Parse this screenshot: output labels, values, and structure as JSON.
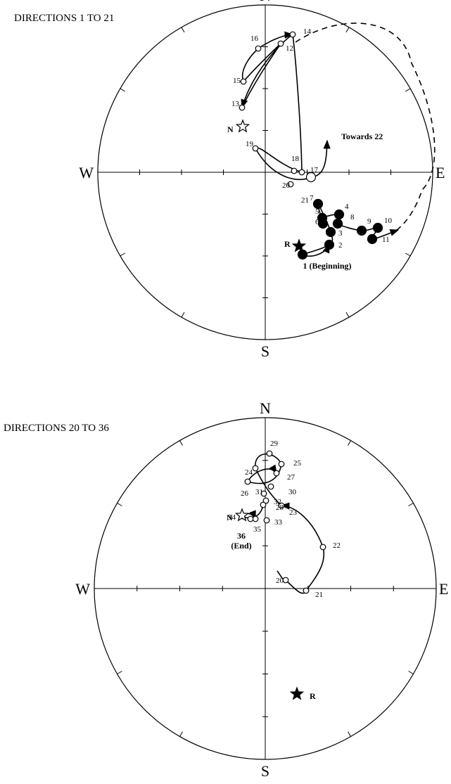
{
  "panels": [
    {
      "title": "DIRECTIONS 1 TO 21",
      "compass": {
        "n": "N",
        "s": "S",
        "w": "W",
        "e": "E"
      },
      "points": [
        {
          "label": "1 (Beginning)"
        },
        {
          "label": "2"
        },
        {
          "label": "3"
        },
        {
          "label": "4"
        },
        {
          "label": "5"
        },
        {
          "label": "6"
        },
        {
          "label": "7"
        },
        {
          "label": "8"
        },
        {
          "label": "9"
        },
        {
          "label": "10"
        },
        {
          "label": "11"
        },
        {
          "label": "12"
        },
        {
          "label": "13"
        },
        {
          "label": "14"
        },
        {
          "label": "15"
        },
        {
          "label": "16"
        },
        {
          "label": "17"
        },
        {
          "label": "18"
        },
        {
          "label": "19"
        },
        {
          "label": "20"
        },
        {
          "label": "21"
        }
      ],
      "stars": [
        {
          "label": "N"
        },
        {
          "label": "R"
        }
      ],
      "note": "Towards 22"
    },
    {
      "title": "DIRECTIONS 20 TO 36",
      "compass": {
        "n": "N",
        "s": "S",
        "w": "W",
        "e": "E"
      },
      "points": [
        {
          "label": "20"
        },
        {
          "label": "21"
        },
        {
          "label": "22"
        },
        {
          "label": "23"
        },
        {
          "label": "24"
        },
        {
          "label": "25"
        },
        {
          "label": "26"
        },
        {
          "label": "27"
        },
        {
          "label": "28"
        },
        {
          "label": "29"
        },
        {
          "label": "30"
        },
        {
          "label": "31"
        },
        {
          "label": "32"
        },
        {
          "label": "33"
        },
        {
          "label": "34"
        },
        {
          "label": "35"
        },
        {
          "label": "36",
          "note": "(End)"
        }
      ],
      "stars": [
        {
          "label": "N"
        },
        {
          "label": "R"
        }
      ]
    }
  ]
}
